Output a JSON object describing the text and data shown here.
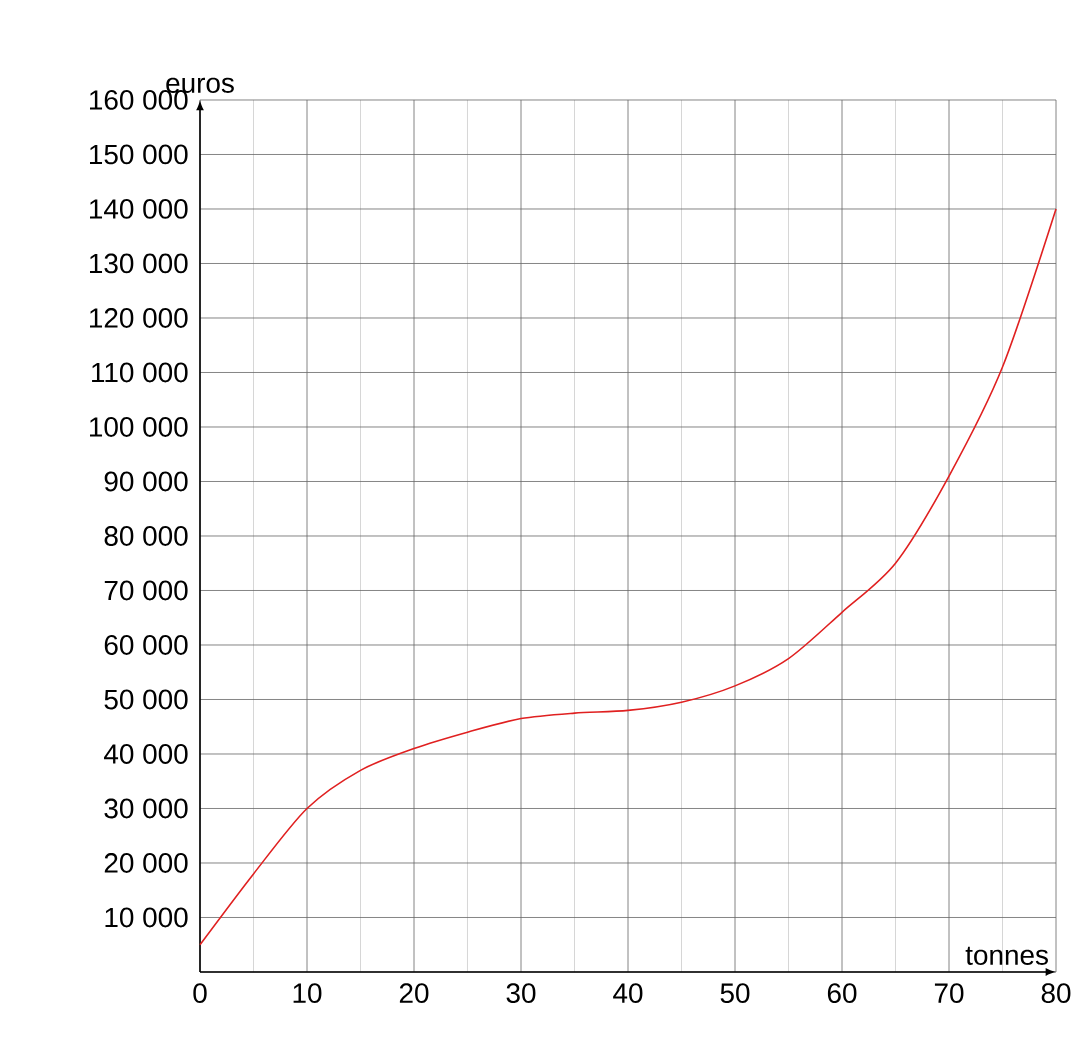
{
  "chart_data": {
    "type": "line",
    "xlabel": "tonnes",
    "ylabel": "euros",
    "color": "#e02020",
    "x": [
      0,
      5,
      10,
      15,
      20,
      25,
      30,
      35,
      40,
      45,
      50,
      55,
      60,
      65,
      70,
      75,
      80
    ],
    "values": [
      5000,
      18000,
      30000,
      37000,
      41000,
      44000,
      46500,
      47500,
      48000,
      49500,
      52500,
      57500,
      66000,
      75000,
      91000,
      111000,
      140000
    ],
    "xlim": [
      0,
      80
    ],
    "ylim": [
      0,
      160000
    ],
    "xticks": [
      0,
      10,
      20,
      30,
      40,
      50,
      60,
      70,
      80
    ],
    "yticks": [
      {
        "value": 0,
        "label": null
      },
      {
        "value": 10000,
        "label": "10 000"
      },
      {
        "value": 20000,
        "label": "20 000"
      },
      {
        "value": 30000,
        "label": "30 000"
      },
      {
        "value": 40000,
        "label": "40 000"
      },
      {
        "value": 50000,
        "label": "50 000"
      },
      {
        "value": 60000,
        "label": "60 000"
      },
      {
        "value": 70000,
        "label": "70 000"
      },
      {
        "value": 80000,
        "label": "80 000"
      },
      {
        "value": 90000,
        "label": "90 000"
      },
      {
        "value": 100000,
        "label": "100 000"
      },
      {
        "value": 110000,
        "label": "110 000"
      },
      {
        "value": 120000,
        "label": "120 000"
      },
      {
        "value": 130000,
        "label": "130 000"
      },
      {
        "value": 140000,
        "label": "140 000"
      },
      {
        "value": 150000,
        "label": "150 000"
      },
      {
        "value": 160000,
        "label": "160 000"
      }
    ],
    "grid": true,
    "marker": "none",
    "line_style": "solid"
  }
}
